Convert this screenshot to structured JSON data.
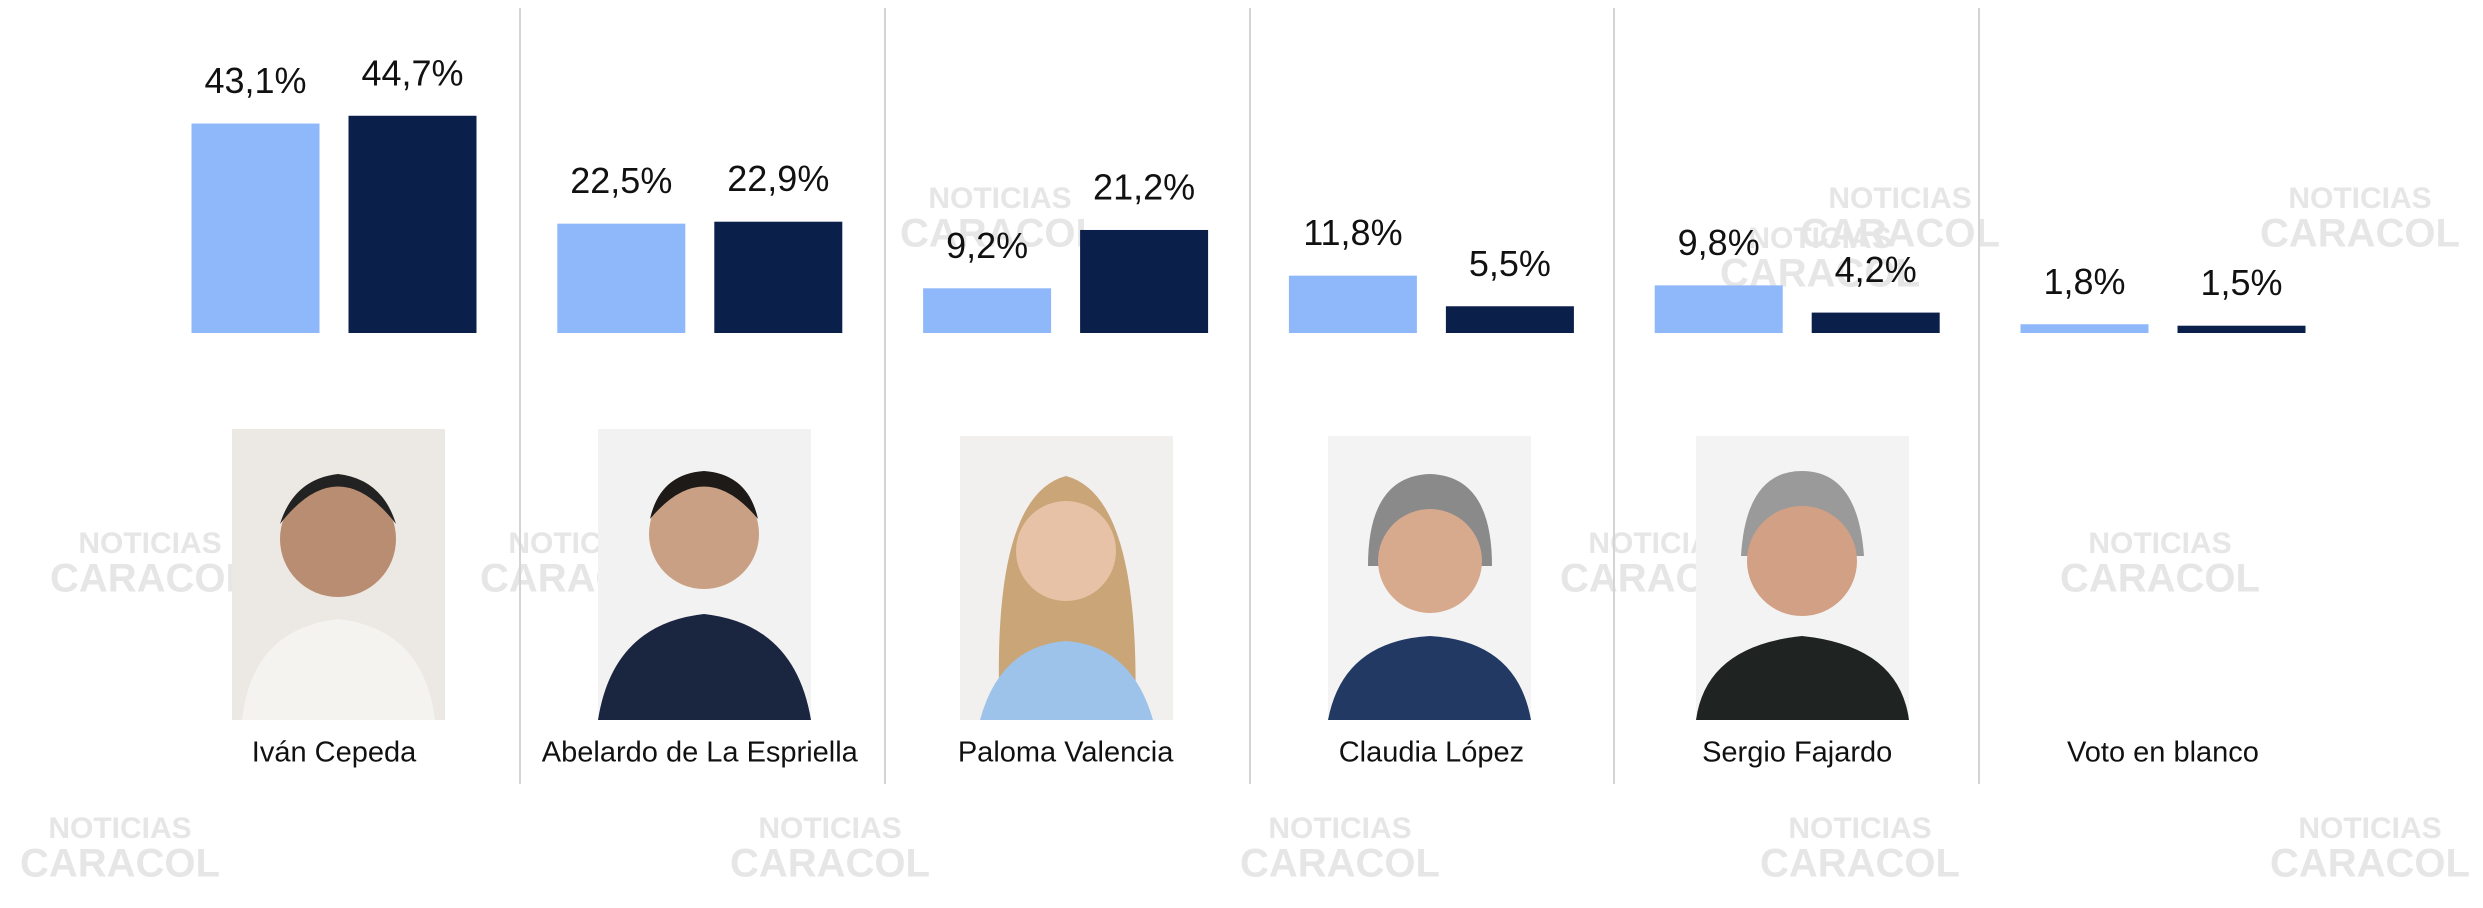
{
  "chart_data": {
    "type": "bar",
    "categories": [
      "Iván Cepeda",
      "Abelardo de La Espriella",
      "Paloma Valencia",
      "Claudia López",
      "Sergio Fajardo",
      "Voto en blanco"
    ],
    "series": [
      {
        "color": "#8fb8fb",
        "values": [
          43.1,
          22.5,
          9.2,
          11.8,
          9.8,
          1.8
        ],
        "value_labels": [
          "43,1%",
          "22,5%",
          "9,2%",
          "11,8%",
          "9,8%",
          "1,8%"
        ]
      },
      {
        "color": "#0b1f4b",
        "values": [
          44.7,
          22.9,
          21.2,
          5.5,
          4.2,
          1.5
        ],
        "value_labels": [
          "44,7%",
          "22,9%",
          "21,2%",
          "5,5%",
          "4,2%",
          "1,5%"
        ]
      }
    ],
    "watermark": {
      "line1": "NOTICIAS",
      "line2": "CARACOL"
    }
  }
}
